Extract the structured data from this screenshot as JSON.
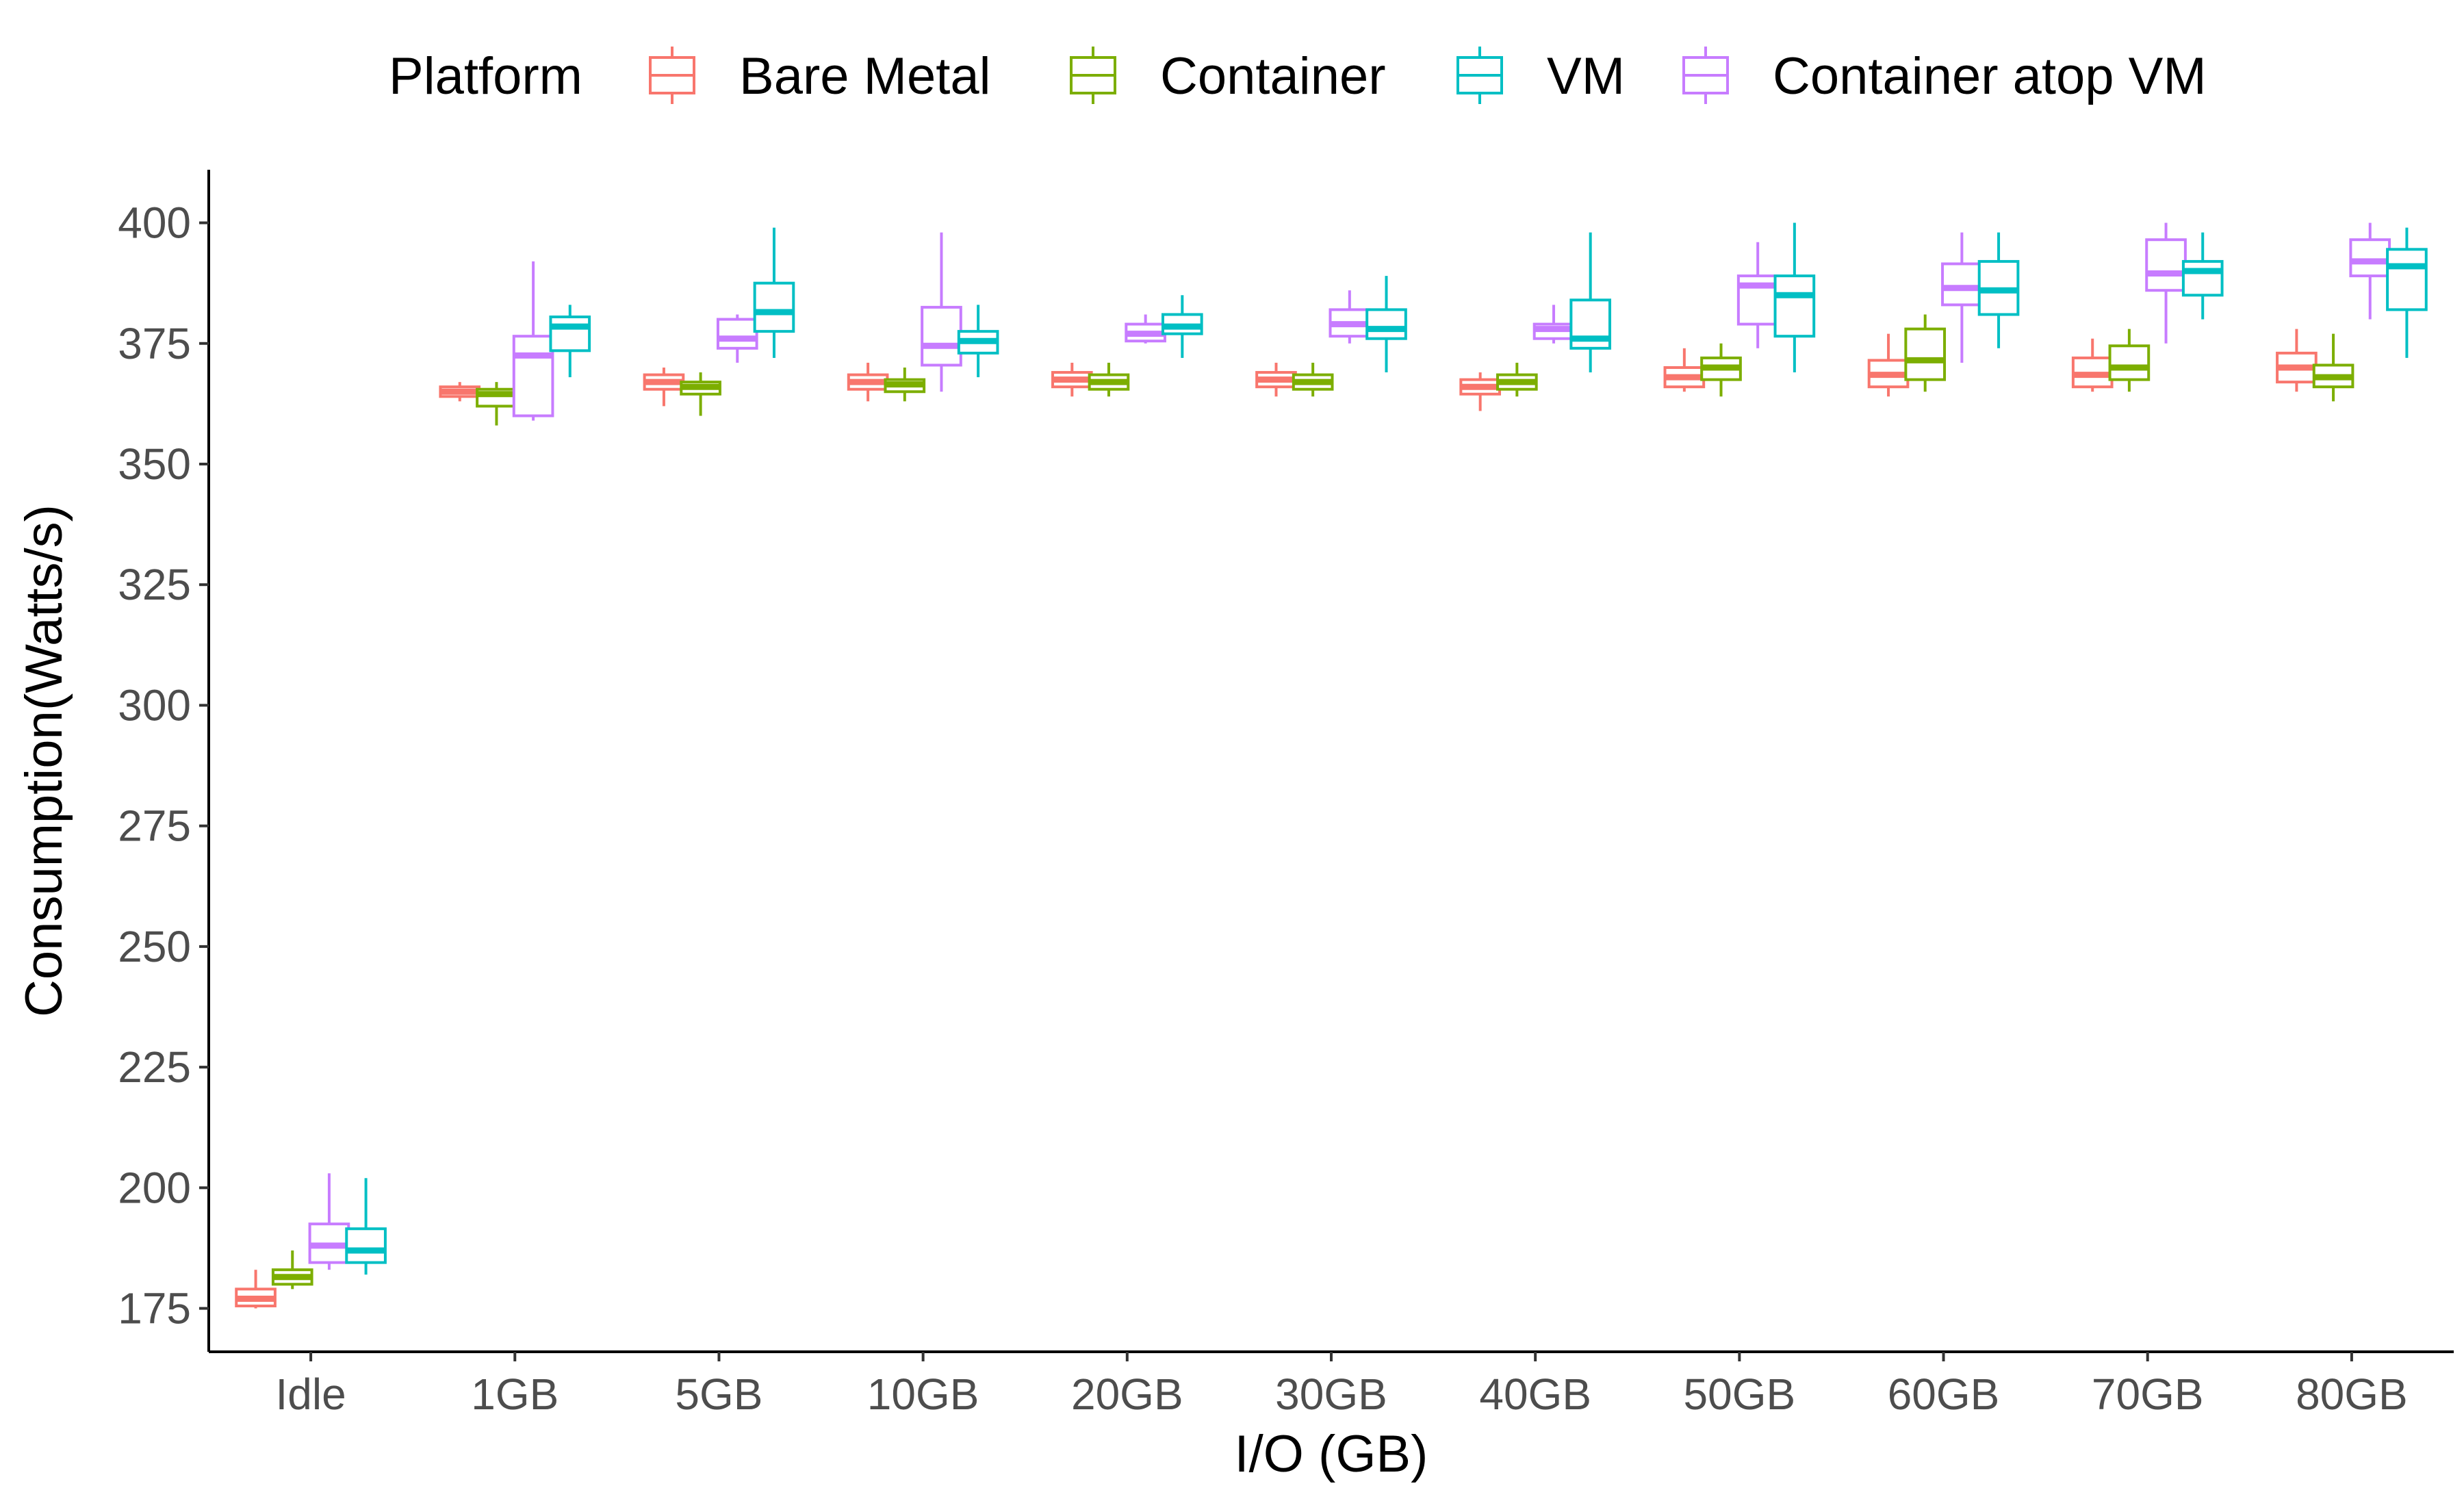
{
  "chart_data": {
    "type": "box",
    "title": "",
    "xlabel": "I/O (GB)",
    "ylabel": "Consumption(Watts/s)",
    "ylim": [
      166,
      411
    ],
    "yticks": [
      175,
      200,
      225,
      250,
      275,
      300,
      325,
      350,
      375,
      400
    ],
    "categories": [
      "Idle",
      "1GB",
      "5GB",
      "10GB",
      "20GB",
      "30GB",
      "40GB",
      "50GB",
      "60GB",
      "70GB",
      "80GB"
    ],
    "grid": false,
    "legend": {
      "title": "Platform",
      "position": "top"
    },
    "series": [
      {
        "name": "Bare Metal",
        "color": "#F8766D",
        "boxes": [
          {
            "min": 175,
            "q1": 175.5,
            "median": 177,
            "q3": 179,
            "max": 183
          },
          {
            "min": 363,
            "q1": 364,
            "median": 365,
            "q3": 366,
            "max": 367
          },
          {
            "min": 362,
            "q1": 365.5,
            "median": 367,
            "q3": 368.5,
            "max": 370
          },
          {
            "min": 363,
            "q1": 365.5,
            "median": 367,
            "q3": 368.5,
            "max": 371
          },
          {
            "min": 364,
            "q1": 366,
            "median": 367.5,
            "q3": 369,
            "max": 371
          },
          {
            "min": 364,
            "q1": 366,
            "median": 367.5,
            "q3": 369,
            "max": 371
          },
          {
            "min": 361,
            "q1": 364.5,
            "median": 366,
            "q3": 367.5,
            "max": 369
          },
          {
            "min": 365,
            "q1": 366,
            "median": 368,
            "q3": 370,
            "max": 374
          },
          {
            "min": 364,
            "q1": 366,
            "median": 368.5,
            "q3": 371.5,
            "max": 377
          },
          {
            "min": 365,
            "q1": 366,
            "median": 368.5,
            "q3": 372,
            "max": 376
          },
          {
            "min": 365,
            "q1": 367,
            "median": 370,
            "q3": 373,
            "max": 378
          }
        ]
      },
      {
        "name": "Container",
        "color": "#7CAE00",
        "boxes": [
          {
            "min": 179,
            "q1": 180,
            "median": 181.5,
            "q3": 183,
            "max": 187
          },
          {
            "min": 358,
            "q1": 362,
            "median": 364.5,
            "q3": 365.5,
            "max": 367
          },
          {
            "min": 360,
            "q1": 364.5,
            "median": 366,
            "q3": 367,
            "max": 369
          },
          {
            "min": 363,
            "q1": 365,
            "median": 366.5,
            "q3": 367.5,
            "max": 370
          },
          {
            "min": 364,
            "q1": 365.5,
            "median": 367,
            "q3": 368.5,
            "max": 371
          },
          {
            "min": 364,
            "q1": 365.5,
            "median": 367,
            "q3": 368.5,
            "max": 371
          },
          {
            "min": 364,
            "q1": 365.5,
            "median": 367,
            "q3": 368.5,
            "max": 371
          },
          {
            "min": 364,
            "q1": 367.5,
            "median": 370,
            "q3": 372,
            "max": 375
          },
          {
            "min": 365,
            "q1": 367.5,
            "median": 371.5,
            "q3": 378,
            "max": 381
          },
          {
            "min": 365,
            "q1": 367.5,
            "median": 370,
            "q3": 374.5,
            "max": 378
          },
          {
            "min": 363,
            "q1": 366,
            "median": 368,
            "q3": 370.5,
            "max": 377
          }
        ]
      },
      {
        "name": "VM",
        "color": "#00BFC4",
        "boxes": [
          {
            "min": 182,
            "q1": 184.5,
            "median": 187,
            "q3": 191.5,
            "max": 202
          },
          {
            "min": 368,
            "q1": 373.5,
            "median": 378.5,
            "q3": 380.5,
            "max": 383
          },
          {
            "min": 372,
            "q1": 377.5,
            "median": 381.5,
            "q3": 387.5,
            "max": 399
          },
          {
            "min": 368,
            "q1": 373,
            "median": 375.5,
            "q3": 377.5,
            "max": 383
          },
          {
            "min": 372,
            "q1": 377,
            "median": 378.5,
            "q3": 381,
            "max": 385
          },
          {
            "min": 369,
            "q1": 376,
            "median": 378,
            "q3": 382,
            "max": 389
          },
          {
            "min": 369,
            "q1": 374,
            "median": 376,
            "q3": 384,
            "max": 398
          },
          {
            "min": 369,
            "q1": 376.5,
            "median": 385,
            "q3": 389,
            "max": 400
          },
          {
            "min": 374,
            "q1": 381,
            "median": 386,
            "q3": 392,
            "max": 398
          },
          {
            "min": 380,
            "q1": 385,
            "median": 390,
            "q3": 392,
            "max": 398
          },
          {
            "min": 372,
            "q1": 382,
            "median": 391,
            "q3": 394.5,
            "max": 399
          }
        ]
      },
      {
        "name": "Container atop VM",
        "color": "#C77CFF",
        "boxes": [
          {
            "min": 183,
            "q1": 184.5,
            "median": 188,
            "q3": 192.5,
            "max": 203
          },
          {
            "min": 359,
            "q1": 360,
            "median": 372.5,
            "q3": 376.5,
            "max": 392
          },
          {
            "min": 371,
            "q1": 374,
            "median": 376,
            "q3": 380,
            "max": 381
          },
          {
            "min": 365,
            "q1": 370.5,
            "median": 374.5,
            "q3": 382.5,
            "max": 398
          },
          {
            "min": 375,
            "q1": 375.5,
            "median": 377,
            "q3": 379,
            "max": 381
          },
          {
            "min": 375,
            "q1": 376.5,
            "median": 379,
            "q3": 382,
            "max": 386
          },
          {
            "min": 375,
            "q1": 376,
            "median": 378,
            "q3": 379,
            "max": 383
          },
          {
            "min": 374,
            "q1": 379,
            "median": 387,
            "q3": 389,
            "max": 396
          },
          {
            "min": 371,
            "q1": 383,
            "median": 386.5,
            "q3": 391.5,
            "max": 398
          },
          {
            "min": 375,
            "q1": 386,
            "median": 389.5,
            "q3": 396.5,
            "max": 400
          },
          {
            "min": 380,
            "q1": 389,
            "median": 392,
            "q3": 396.5,
            "max": 400
          }
        ]
      }
    ]
  }
}
